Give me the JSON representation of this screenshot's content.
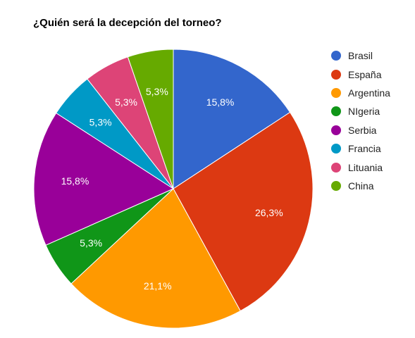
{
  "chart_data": {
    "type": "pie",
    "title": "¿Quién será la decepción del torneo?",
    "legend_position": "right",
    "slices": [
      {
        "label": "Brasil",
        "value": 15.8,
        "value_label": "15,8%",
        "color": "#3366cc"
      },
      {
        "label": "España",
        "value": 26.3,
        "value_label": "26,3%",
        "color": "#dc3912"
      },
      {
        "label": "Argentina",
        "value": 21.1,
        "value_label": "21,1%",
        "color": "#ff9900"
      },
      {
        "label": "NIgeria",
        "value": 5.3,
        "value_label": "5,3%",
        "color": "#109618"
      },
      {
        "label": "Serbia",
        "value": 15.8,
        "value_label": "15,8%",
        "color": "#990099"
      },
      {
        "label": "Francia",
        "value": 5.3,
        "value_label": "5,3%",
        "color": "#0099c6"
      },
      {
        "label": "Lituania",
        "value": 5.3,
        "value_label": "5,3%",
        "color": "#dd4477"
      },
      {
        "label": "China",
        "value": 5.3,
        "value_label": "5,3%",
        "color": "#66aa00"
      }
    ]
  }
}
